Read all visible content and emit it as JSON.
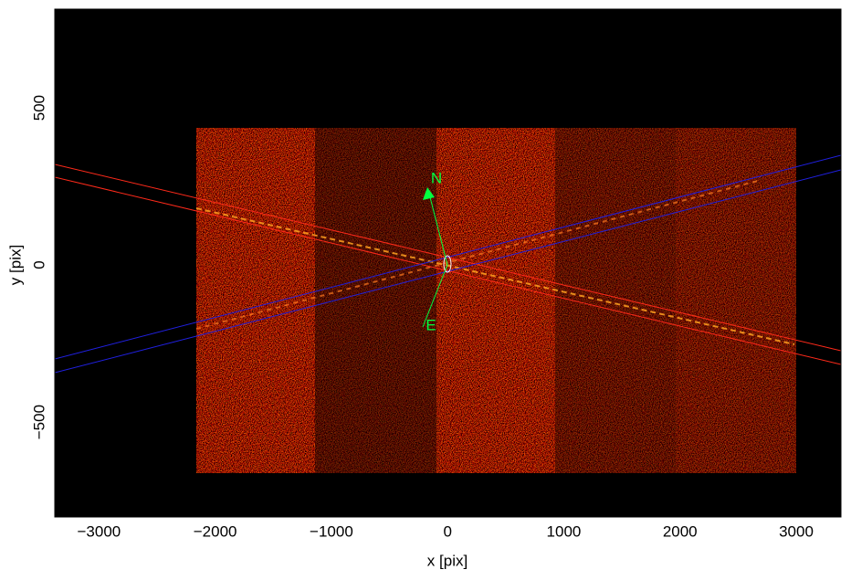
{
  "chart_data": {
    "type": "image",
    "xlabel": "x [pix]",
    "ylabel": "y [pix]",
    "xlim": [
      -3380,
      3385
    ],
    "ylim": [
      -802,
      814
    ],
    "xticks": [
      {
        "value": -3000,
        "label": "−3000"
      },
      {
        "value": -2000,
        "label": "−2000"
      },
      {
        "value": -1000,
        "label": "−1000"
      },
      0,
      1000,
      2000,
      3000
    ],
    "yticks": [
      {
        "value": -500,
        "label": "−500"
      },
      0,
      500
    ],
    "annotations": [
      "N",
      "E"
    ]
  }
}
